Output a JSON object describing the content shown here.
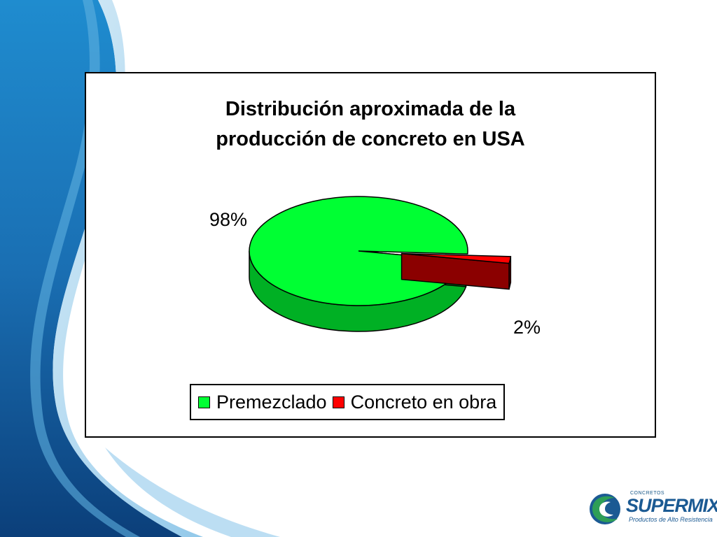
{
  "colors": {
    "premezclado": "#00ff33",
    "premezclado_side": "#00b024",
    "obra": "#ff0000",
    "obra_side": "#8b0000",
    "bg_blue_dark": "#0a4d8c",
    "bg_blue_light": "#3a9fd8",
    "logo_green": "#2e8b57",
    "logo_blue": "#1b5a93"
  },
  "chart_data": {
    "type": "pie",
    "title_lines": [
      "Distribución aproximada de la",
      "producción de concreto en USA"
    ],
    "categories": [
      "Premezclado",
      "Concreto en obra"
    ],
    "values": [
      98,
      2
    ],
    "data_labels": [
      "98%",
      "2%"
    ],
    "legend_position": "bottom",
    "three_d": true,
    "exploded_slice": "Concreto en obra"
  },
  "logo": {
    "small_text": "CONCRETOS",
    "brand": "SUPERMIX",
    "tagline": "Productos de Alto Resistencia"
  }
}
